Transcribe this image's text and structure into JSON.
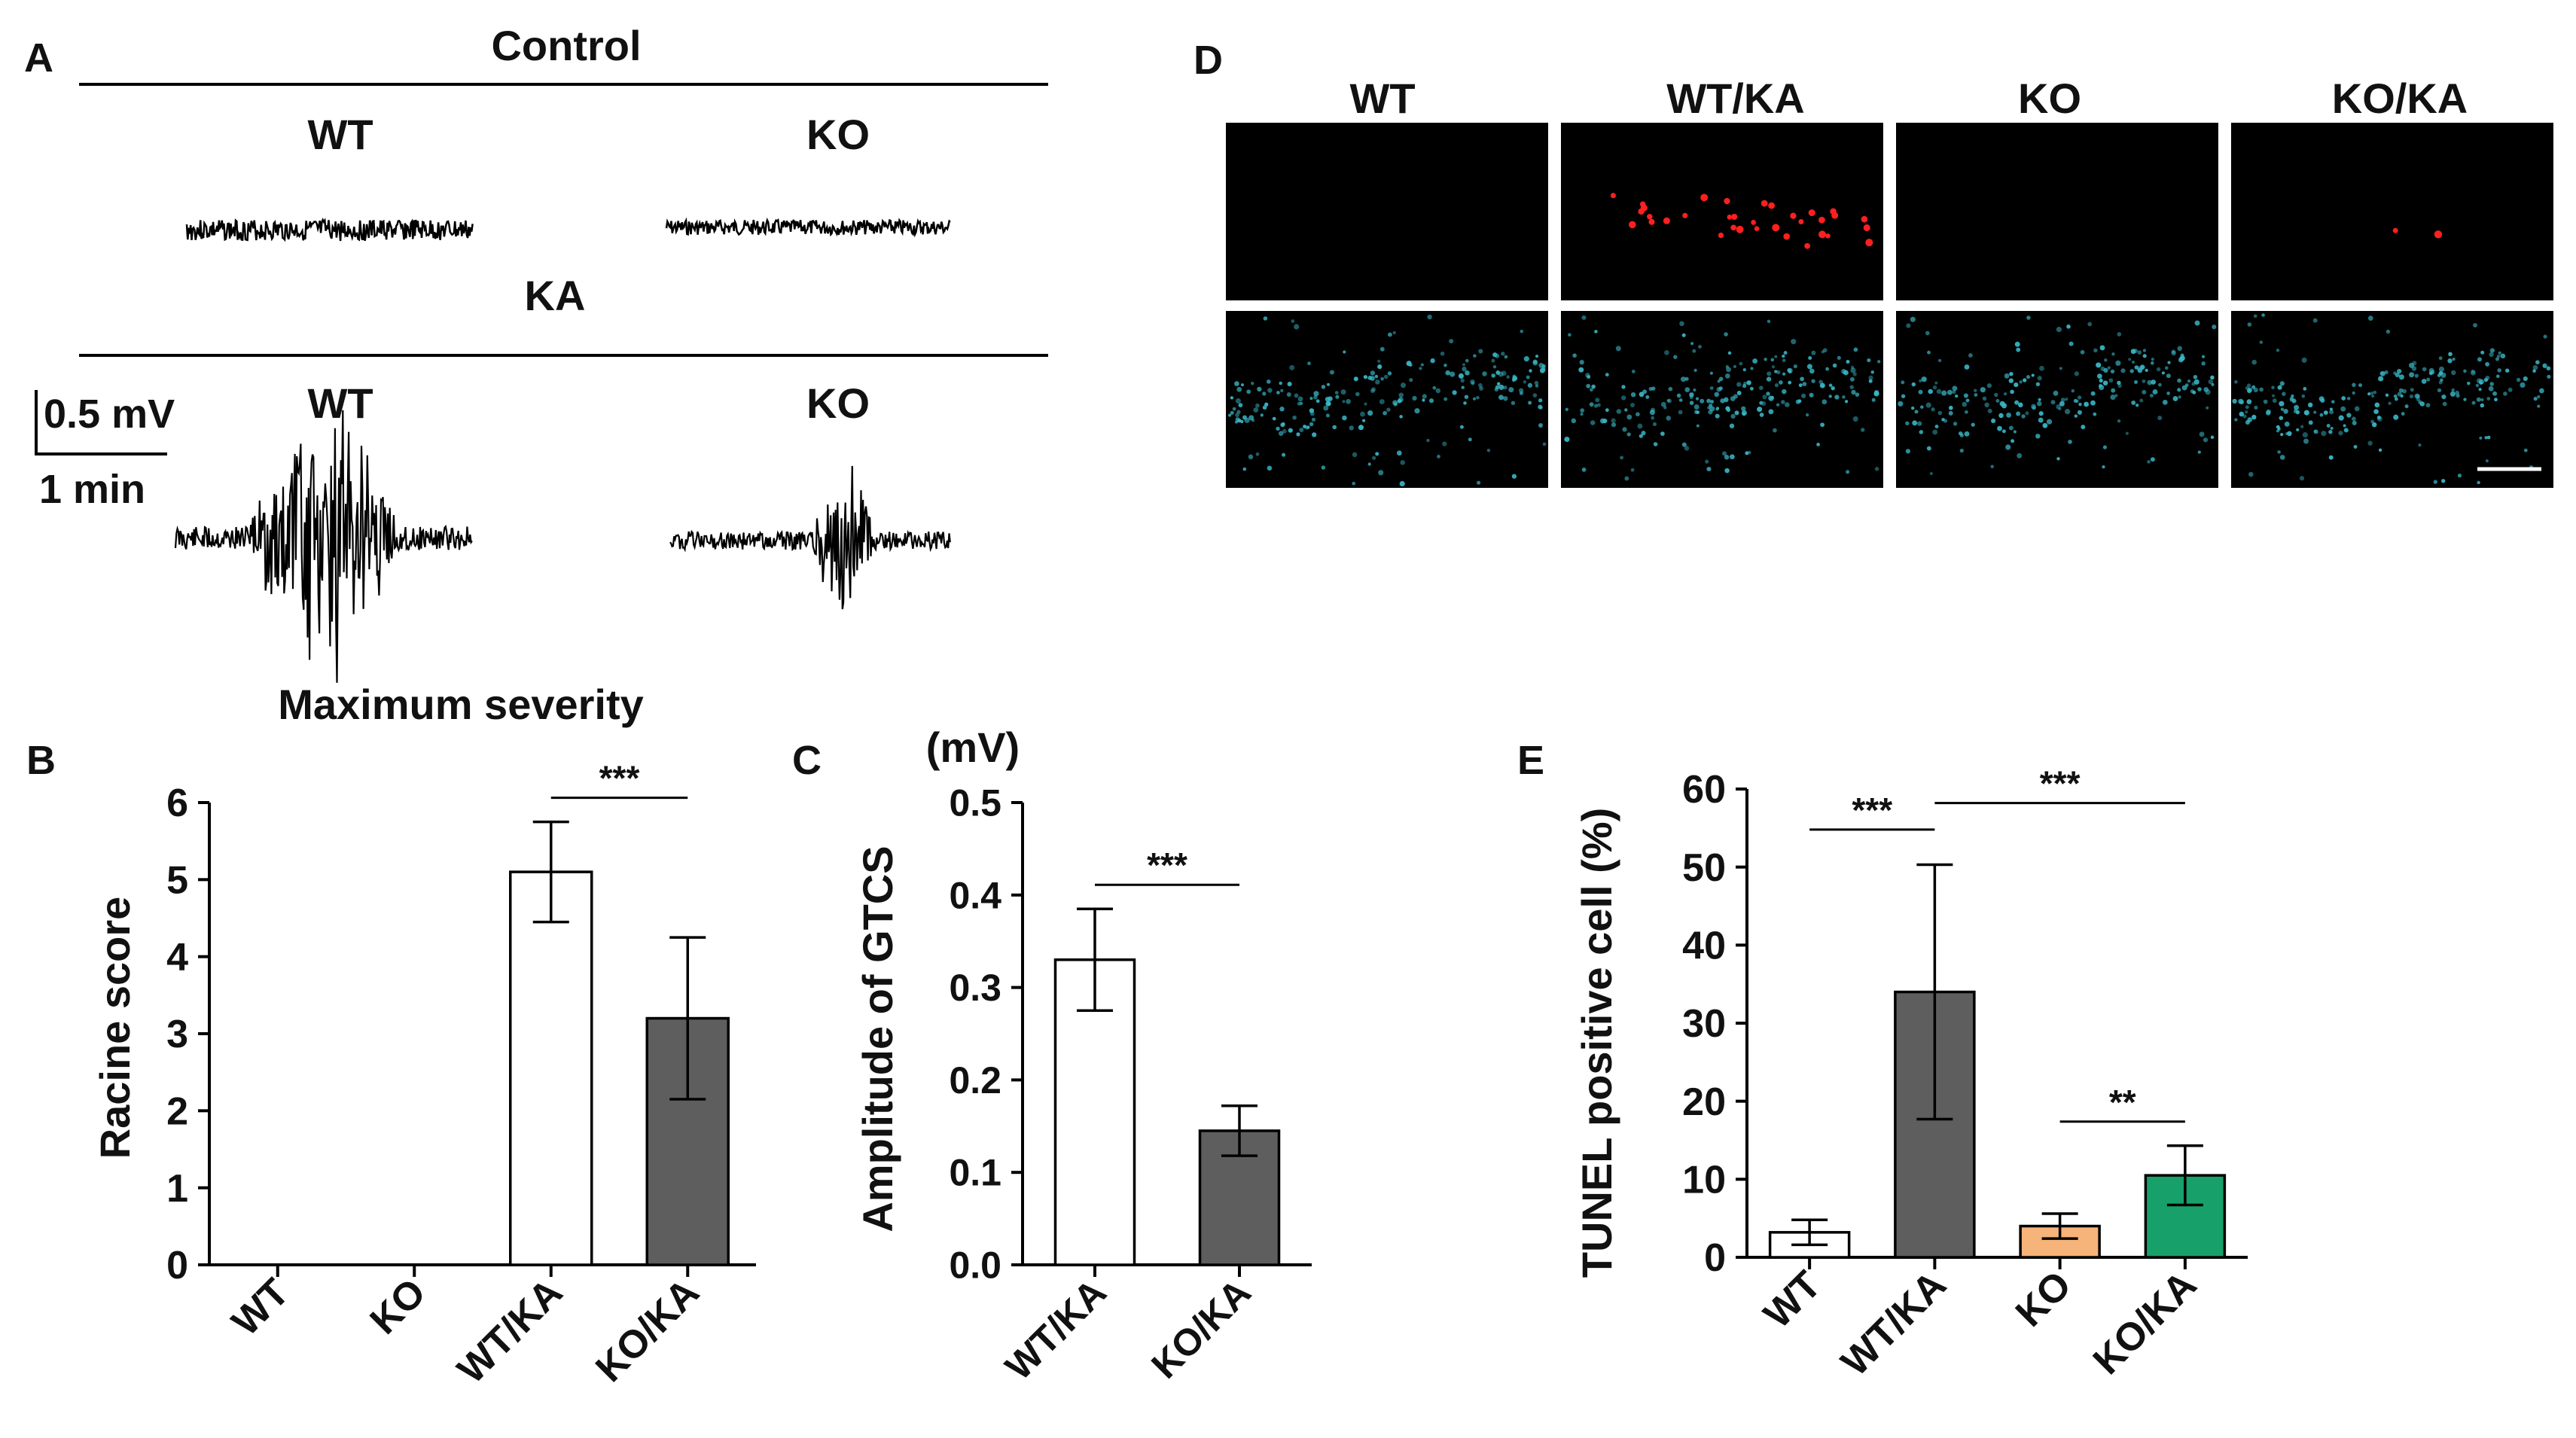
{
  "colors": {
    "black": "#000000",
    "bar_dark": "#5e5e5e",
    "bar_white": "#ffffff",
    "bar_orange": "#f6b37a",
    "bar_green": "#17a06a",
    "tunel_red": "#ff1f1f",
    "dapi_cyan": "#39b8c8"
  },
  "panel_a": {
    "label": "A",
    "control_heading": "Control",
    "ka_heading": "KA",
    "wt_label": "WT",
    "ko_label": "KO",
    "scale_mv": "0.5 mV",
    "scale_min": "1 min",
    "footer": "Maximum severity"
  },
  "panel_d": {
    "label": "D",
    "columns": [
      "WT",
      "WT/KA",
      "KO",
      "KO/KA"
    ],
    "tunel_dots": [
      0,
      34,
      0,
      2
    ]
  },
  "chart_data": [
    {
      "id": "B",
      "type": "bar",
      "label": "B",
      "title": "",
      "xlabel": "",
      "ylabel": "Racine score",
      "categories": [
        "WT",
        "KO",
        "WT/KA",
        "KO/KA"
      ],
      "values": [
        0,
        0,
        5.1,
        3.2
      ],
      "errors": [
        0,
        0,
        0.65,
        1.05
      ],
      "bar_colors": [
        "#ffffff",
        "#ffffff",
        "#ffffff",
        "#5e5e5e"
      ],
      "ylim": [
        0,
        6
      ],
      "yticks": [
        "0",
        "1",
        "2",
        "3",
        "4",
        "5",
        "6"
      ],
      "grid": false,
      "significance": [
        {
          "from": 2,
          "to": 3,
          "text": "***"
        }
      ]
    },
    {
      "id": "C",
      "type": "bar",
      "label": "C",
      "title": "",
      "xlabel": "",
      "ylabel": "Amplitude of  GTCS",
      "unit_label": "(mV)",
      "categories": [
        "WT/KA",
        "KO/KA"
      ],
      "values": [
        0.33,
        0.145
      ],
      "errors": [
        0.055,
        0.027
      ],
      "bar_colors": [
        "#ffffff",
        "#5e5e5e"
      ],
      "ylim": [
        0,
        0.5
      ],
      "yticks": [
        "0.0",
        "0.1",
        "0.2",
        "0.3",
        "0.4",
        "0.5"
      ],
      "grid": false,
      "significance": [
        {
          "from": 0,
          "to": 1,
          "text": "***"
        }
      ]
    },
    {
      "id": "E",
      "type": "bar",
      "label": "E",
      "title": "",
      "xlabel": "",
      "ylabel": "TUNEL positive cell (%)",
      "categories": [
        "WT",
        "WT/KA",
        "KO",
        "KO/KA"
      ],
      "values": [
        3.2,
        34,
        4,
        10.5
      ],
      "errors": [
        1.6,
        16.3,
        1.6,
        3.8
      ],
      "bar_colors": [
        "#ffffff",
        "#5e5e5e",
        "#f6b37a",
        "#17a06a"
      ],
      "ylim": [
        0,
        60
      ],
      "yticks": [
        "0",
        "10",
        "20",
        "30",
        "40",
        "50",
        "60"
      ],
      "grid": false,
      "significance": [
        {
          "from": 0,
          "to": 1,
          "text": "***"
        },
        {
          "from": 1,
          "to": 3,
          "text": "***"
        },
        {
          "from": 2,
          "to": 3,
          "text": "**"
        }
      ]
    }
  ]
}
